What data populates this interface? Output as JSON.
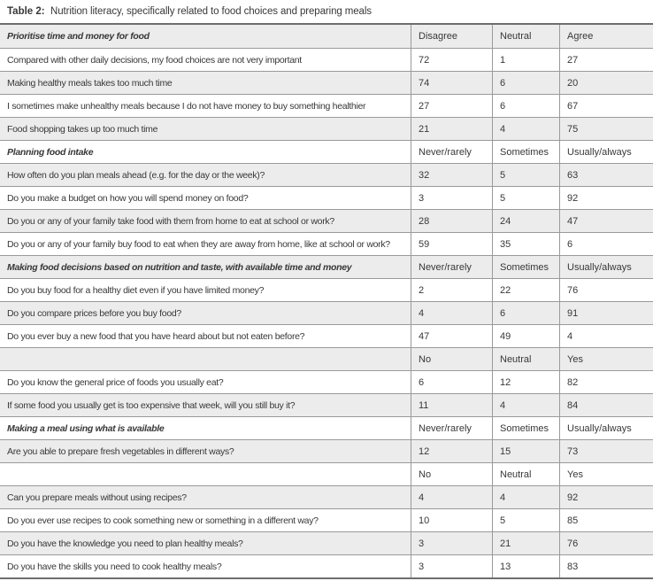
{
  "title": {
    "label": "Table 2:",
    "caption": "Nutrition literacy, specifically related to food choices and preparing meals"
  },
  "colors": {
    "shaded_row": "#ececec",
    "inner_border": "#9a9a9a",
    "outer_border": "#6e6e6e",
    "text": "#383838"
  },
  "table": {
    "rows": [
      {
        "type": "section",
        "cells": [
          "Prioritise time and money for food",
          "Disagree",
          "Neutral",
          "Agree"
        ]
      },
      {
        "type": "question",
        "cells": [
          "Compared with other daily decisions, my food choices are not very important",
          "72",
          "1",
          "27"
        ]
      },
      {
        "type": "question",
        "cells": [
          "Making healthy meals takes too much time",
          "74",
          "6",
          "20"
        ]
      },
      {
        "type": "question",
        "cells": [
          "I sometimes make unhealthy meals because I do not have money to buy something healthier",
          "27",
          "6",
          "67"
        ]
      },
      {
        "type": "question",
        "cells": [
          "Food shopping takes up too much time",
          "21",
          "4",
          "75"
        ]
      },
      {
        "type": "section",
        "cells": [
          "Planning food intake",
          "Never/rarely",
          "Sometimes",
          "Usually/always"
        ]
      },
      {
        "type": "question",
        "cells": [
          "How often do you plan meals ahead (e.g. for the day or the week)?",
          "32",
          "5",
          "63"
        ]
      },
      {
        "type": "question",
        "cells": [
          "Do you make a budget on how you will spend money on food?",
          "3",
          "5",
          "92"
        ]
      },
      {
        "type": "question",
        "cells": [
          "Do you or any of your family take food with them from home to eat at school or work?",
          "28",
          "24",
          "47"
        ]
      },
      {
        "type": "question",
        "cells": [
          "Do you or any of your family buy food to eat when they are away from home, like at school or work?",
          "59",
          "35",
          "6"
        ]
      },
      {
        "type": "section",
        "cells": [
          "Making food decisions based on nutrition and taste, with available time and money",
          "Never/rarely",
          "Sometimes",
          "Usually/always"
        ]
      },
      {
        "type": "question",
        "cells": [
          "Do you buy food for a healthy diet even if you have limited money?",
          "2",
          "22",
          "76"
        ]
      },
      {
        "type": "question",
        "cells": [
          "Do you compare prices before you buy food?",
          "4",
          "6",
          "91"
        ]
      },
      {
        "type": "question",
        "cells": [
          "Do you ever buy a new food that you have heard about but not eaten before?",
          "47",
          "49",
          "4"
        ]
      },
      {
        "type": "subheader",
        "cells": [
          "",
          "No",
          "Neutral",
          "Yes"
        ]
      },
      {
        "type": "question",
        "cells": [
          "Do you know the general price of foods you usually eat?",
          "6",
          "12",
          "82"
        ]
      },
      {
        "type": "question",
        "cells": [
          "If some food you usually get is too expensive that week, will you still buy it?",
          "11",
          "4",
          "84"
        ]
      },
      {
        "type": "section",
        "cells": [
          "Making a meal using what is available",
          "Never/rarely",
          "Sometimes",
          "Usually/always"
        ]
      },
      {
        "type": "question",
        "cells": [
          "Are you able to prepare fresh vegetables in different ways?",
          "12",
          "15",
          "73"
        ]
      },
      {
        "type": "subheader",
        "cells": [
          "",
          "No",
          "Neutral",
          "Yes"
        ]
      },
      {
        "type": "question",
        "cells": [
          "Can you prepare meals without using recipes?",
          "4",
          "4",
          "92"
        ]
      },
      {
        "type": "question",
        "cells": [
          "Do you ever use recipes to cook something new or something in a different way?",
          "10",
          "5",
          "85"
        ]
      },
      {
        "type": "question",
        "cells": [
          "Do you have the knowledge you need to plan healthy meals?",
          "3",
          "21",
          "76"
        ]
      },
      {
        "type": "question",
        "cells": [
          "Do you have the skills you need to cook healthy meals?",
          "3",
          "13",
          "83"
        ]
      }
    ]
  }
}
